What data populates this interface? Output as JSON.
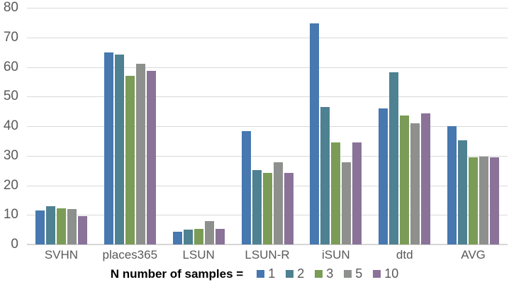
{
  "chart_data": {
    "type": "bar",
    "title": "",
    "categories": [
      "SVHN",
      "places365",
      "LSUN",
      "LSUN-R",
      "iSUN",
      "dtd",
      "AVG"
    ],
    "series": [
      {
        "name": "1",
        "color": "#4778B0",
        "values": [
          11.5,
          65.0,
          4.2,
          38.4,
          74.7,
          46.0,
          40.0
        ]
      },
      {
        "name": "2",
        "color": "#4E8191",
        "values": [
          13.0,
          64.2,
          5.0,
          25.2,
          46.5,
          58.3,
          35.3
        ]
      },
      {
        "name": "3",
        "color": "#7B9C56",
        "values": [
          12.3,
          57.0,
          5.2,
          24.3,
          34.5,
          43.7,
          29.4
        ]
      },
      {
        "name": "5",
        "color": "#8E908D",
        "values": [
          11.9,
          61.2,
          8.0,
          27.9,
          27.8,
          40.9,
          29.8
        ]
      },
      {
        "name": "10",
        "color": "#8A7299",
        "values": [
          9.7,
          58.7,
          5.2,
          24.2,
          34.4,
          44.4,
          29.5
        ]
      }
    ],
    "ylim": [
      0,
      80
    ],
    "y_ticks": [
      0,
      10,
      20,
      30,
      40,
      50,
      60,
      70,
      80
    ],
    "grid": true,
    "legend_title": "N number of samples =",
    "legend_position": "bottom",
    "axis_text_color": "#595959",
    "gridline_color": "#d9d9d9"
  }
}
